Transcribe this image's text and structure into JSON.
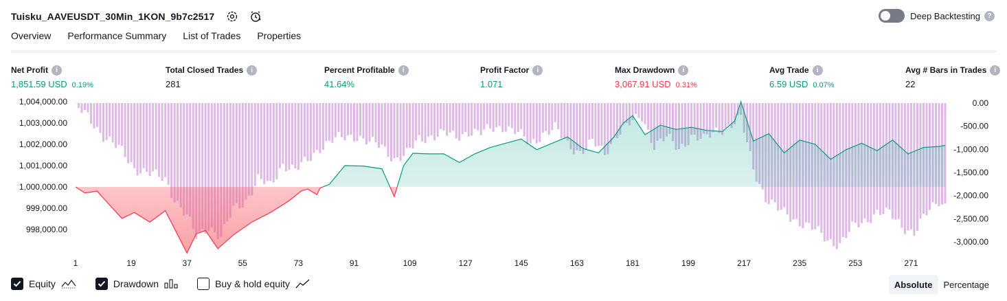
{
  "header": {
    "title": "Tuisku_AAVEUSDT_30Min_1KON_9b7c2517",
    "deep_backtesting_label": "Deep Backtesting",
    "deep_backtesting_on": false
  },
  "tabs": [
    {
      "label": "Overview",
      "active": true
    },
    {
      "label": "Performance Summary",
      "active": false
    },
    {
      "label": "List of Trades",
      "active": false
    },
    {
      "label": "Properties",
      "active": false
    }
  ],
  "metrics": [
    {
      "label": "Net Profit",
      "value": "1,851.59 USD",
      "sub": "0.19%",
      "color": "green"
    },
    {
      "label": "Total Closed Trades",
      "value": "281",
      "sub": "",
      "color": "dark"
    },
    {
      "label": "Percent Profitable",
      "value": "41.64%",
      "sub": "",
      "color": "green"
    },
    {
      "label": "Profit Factor",
      "value": "1.071",
      "sub": "",
      "color": "green"
    },
    {
      "label": "Max Drawdown",
      "value": "3,067.91 USD",
      "sub": "0.31%",
      "color": "red"
    },
    {
      "label": "Avg Trade",
      "value": "6.59 USD",
      "sub": "0.07%",
      "color": "green"
    },
    {
      "label": "Avg # Bars in Trades",
      "value": "22",
      "sub": "",
      "color": "dark"
    }
  ],
  "legend": {
    "equity": {
      "label": "Equity",
      "checked": true
    },
    "drawdown": {
      "label": "Drawdown",
      "checked": true
    },
    "buy_hold": {
      "label": "Buy & hold equity",
      "checked": false
    }
  },
  "mode": {
    "absolute": "Absolute",
    "percentage": "Percentage",
    "active": "absolute"
  },
  "colors": {
    "profit": "#089981",
    "loss": "#f23645",
    "equity_fill": "#22ab94",
    "loss_fill": "#f7525f",
    "drawdown_bar": "#ce93d8"
  },
  "chart_data": {
    "type": "line",
    "x_label": "",
    "x_tick_labels": [
      "1",
      "19",
      "37",
      "55",
      "73",
      "91",
      "109",
      "127",
      "145",
      "163",
      "181",
      "199",
      "217",
      "235",
      "253",
      "271"
    ],
    "y_left_ticks": [
      "1,004,000.00",
      "1,003,000.00",
      "1,002,000.00",
      "1,001,000.00",
      "1,000,000.00",
      "999,000.00",
      "998,000.00"
    ],
    "y_right_ticks": [
      "0.00",
      "-500.00",
      "-1,000.00",
      "-1,500.00",
      "-2,000.00",
      "-2,500.00",
      "-3,000.00"
    ],
    "y_left_range": [
      997000,
      1004100
    ],
    "y_right_range": [
      -3150,
      0
    ],
    "baseline": 1000000,
    "series": [
      {
        "kind": "equity",
        "trades": [
          1,
          4,
          8,
          12,
          16,
          20,
          25,
          30,
          34,
          37,
          40,
          43,
          47,
          52,
          58,
          64,
          70,
          74,
          76,
          79,
          80,
          83,
          88,
          94,
          100,
          104,
          107,
          110,
          115,
          120,
          125,
          130,
          135,
          140,
          145,
          150,
          155,
          160,
          165,
          170,
          175,
          178,
          181,
          185,
          190,
          195,
          200,
          205,
          210,
          214,
          216,
          220,
          225,
          230,
          235,
          240,
          245,
          250,
          255,
          260,
          265,
          270,
          275,
          280,
          282
        ],
        "values": [
          1000000,
          999720,
          999800,
          999150,
          998520,
          998800,
          998350,
          998880,
          997750,
          996900,
          997800,
          997950,
          997100,
          997750,
          998350,
          998800,
          999350,
          999820,
          999900,
          999640,
          999950,
          1000120,
          1001000,
          1000980,
          1000850,
          999550,
          1001000,
          1001580,
          1001550,
          1001550,
          1001150,
          1001550,
          1001850,
          1002050,
          1002250,
          1001750,
          1002050,
          1002350,
          1001800,
          1001600,
          1002350,
          1003000,
          1003350,
          1002450,
          1002900,
          1002700,
          1002800,
          1002650,
          1002600,
          1003100,
          1004000,
          1002150,
          1002500,
          1001600,
          1002200,
          1002000,
          1001300,
          1001750,
          1002050,
          1001700,
          1002200,
          1001550,
          1001850,
          1001900,
          1001950
        ]
      },
      {
        "kind": "drawdown",
        "trades": [
          1,
          5,
          10,
          16,
          20,
          26,
          30,
          33,
          37,
          40,
          44,
          48,
          52,
          56,
          60,
          64,
          68,
          72,
          76,
          80,
          84,
          88,
          92,
          96,
          100,
          104,
          108,
          112,
          116,
          120,
          124,
          128,
          132,
          136,
          140,
          144,
          148,
          152,
          156,
          160,
          164,
          168,
          172,
          176,
          180,
          184,
          188,
          192,
          196,
          200,
          204,
          208,
          212,
          216,
          220,
          224,
          228,
          232,
          236,
          240,
          244,
          248,
          252,
          256,
          260,
          264,
          268,
          272,
          276,
          280,
          282
        ],
        "values": [
          -80,
          -300,
          -700,
          -1050,
          -1400,
          -1550,
          -1650,
          -2050,
          -2450,
          -2900,
          -2650,
          -2900,
          -2300,
          -2100,
          -1650,
          -1800,
          -1300,
          -1450,
          -1250,
          -950,
          -800,
          -750,
          -700,
          -850,
          -950,
          -1200,
          -1100,
          -800,
          -700,
          -650,
          -750,
          -600,
          -650,
          -550,
          -500,
          -650,
          -900,
          -650,
          -550,
          -900,
          -1050,
          -850,
          -1100,
          -650,
          -450,
          -300,
          -900,
          -750,
          -1000,
          -700,
          -800,
          -600,
          -500,
          -350,
          -1400,
          -2050,
          -2300,
          -2450,
          -2600,
          -2750,
          -2950,
          -3050,
          -2700,
          -2550,
          -2350,
          -2400,
          -2650,
          -2800,
          -2400,
          -2100,
          -2200
        ]
      }
    ]
  }
}
